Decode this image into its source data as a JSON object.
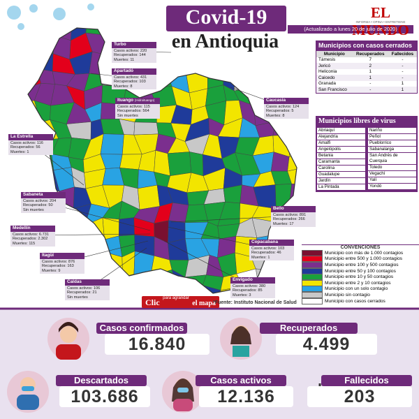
{
  "header": {
    "title": "Covid-19",
    "subtitle": "en Antioquia",
    "logo": "EL MUNDO",
    "logo_tagline": "INFORMA • OPINA • ENTRETIENE",
    "updated": "(Actualizado a lunes 20 de julio de 2020)"
  },
  "closed_cases": {
    "title": "Municipios con casos cerrados",
    "columns": [
      "Municipio",
      "Recuperados",
      "Fallecidos"
    ],
    "rows": [
      [
        "Támesis",
        "7",
        "-"
      ],
      [
        "Jericó",
        "2",
        "-"
      ],
      [
        "Heliconia",
        "1",
        "-"
      ],
      [
        "Caicedo",
        "1",
        "-"
      ],
      [
        "Granada",
        "-",
        "1"
      ],
      [
        "San Francisco",
        "-",
        "1"
      ]
    ]
  },
  "virus_free": {
    "title": "Municipios libres de virus",
    "columns": [
      [
        "Abriaquí",
        "Alejandría",
        "Amalfi",
        "Angelópolis",
        "Betania",
        "Caramanta",
        "Carolina",
        "Guadalupe",
        "Jardín",
        "La Pintada"
      ],
      [
        "Nariño",
        "Peñol",
        "Pueblorrico",
        "Sabanalarga",
        "San Andrés de Cuerquia",
        "Toledo",
        "Vegachí",
        "Yalí",
        "Yondó"
      ]
    ]
  },
  "legend": {
    "title": "CONVENCIONES",
    "items": [
      {
        "label": "Municipio con más de 1.000 contagios",
        "color": "#7a1030"
      },
      {
        "label": "Municipio entre 500 y 1.000 contagios",
        "color": "#e3001b"
      },
      {
        "label": "Municipio entre 100 y 500 contagios",
        "color": "#7b2f8e"
      },
      {
        "label": "Municipio entre 50 y 100 contagios",
        "color": "#1f3b9a"
      },
      {
        "label": "Municipio entre 10 y 50 contagios",
        "color": "#1aa03c"
      },
      {
        "label": "Municipio entre 2 y 10 contagios",
        "color": "#f2e500"
      },
      {
        "label": "Municipio con un solo contagio",
        "color": "#29a3e3"
      },
      {
        "label": "Municipio sin contagio",
        "color": "#c8c8c8"
      },
      {
        "label": "Municipio con casos cerrados",
        "color": "#ffffff"
      }
    ]
  },
  "callouts": [
    {
      "name": "Turbo",
      "lines": [
        "Casos activos: 220",
        "Recuperados: 144",
        "Muertes: 11"
      ]
    },
    {
      "name": "Apartadó",
      "lines": [
        "Casos activos: 431",
        "Recuperados: 103",
        "Muertes: 8"
      ]
    },
    {
      "name": "Ituango",
      "note": "(Hidroituango)",
      "lines": [
        "Casos activos: 115",
        "Recuperados: 564",
        "Sin muertes"
      ]
    },
    {
      "name": "Caucasia",
      "lines": [
        "Casos activos: 124",
        "Recuperados: 5",
        "Muertes: 8"
      ]
    },
    {
      "name": "La Estrella",
      "lines": [
        "Casos activos: 116",
        "Recuperados: 56",
        "Muertes: 1"
      ]
    },
    {
      "name": "Sabaneta",
      "lines": [
        "Casos activos: 204",
        "Recuperados: 50",
        "Sin muertes"
      ]
    },
    {
      "name": "Medellín",
      "lines": [
        "Casos activos: 6.731",
        "Recuperados: 2.302",
        "Muertes: 115"
      ]
    },
    {
      "name": "Itagüí",
      "lines": [
        "Casos activos: 876",
        "Recuperados: 163",
        "Muertes: 9"
      ]
    },
    {
      "name": "Caldas",
      "lines": [
        "Casos activos: 106",
        "Recuperados: 21",
        "Sin muertes"
      ]
    },
    {
      "name": "Bello",
      "lines": [
        "Casos activos: 891",
        "Recuperados: 266",
        "Muertes: 17"
      ]
    },
    {
      "name": "Copacabana",
      "lines": [
        "Casos activos: 103",
        "Recuperados: 46",
        "Muertes: 1"
      ]
    },
    {
      "name": "Envigado",
      "lines": [
        "Casos activos: 380",
        "Recuperados: 85",
        "Muertes: 3"
      ]
    }
  ],
  "map_link": {
    "clic": "Clic",
    "small": "para agrandar",
    "rest": "el mapa"
  },
  "source": "*Fuente: Instituto Nacional de Salud",
  "stats": [
    {
      "label": "Casos confirmados",
      "value": "16.840"
    },
    {
      "label": "Recuperados",
      "value": "4.499"
    },
    {
      "label": "Descartados",
      "value": "103.686"
    },
    {
      "label": "Casos activos",
      "value": "12.136"
    },
    {
      "label": "Fallecidos",
      "value": "203"
    }
  ]
}
